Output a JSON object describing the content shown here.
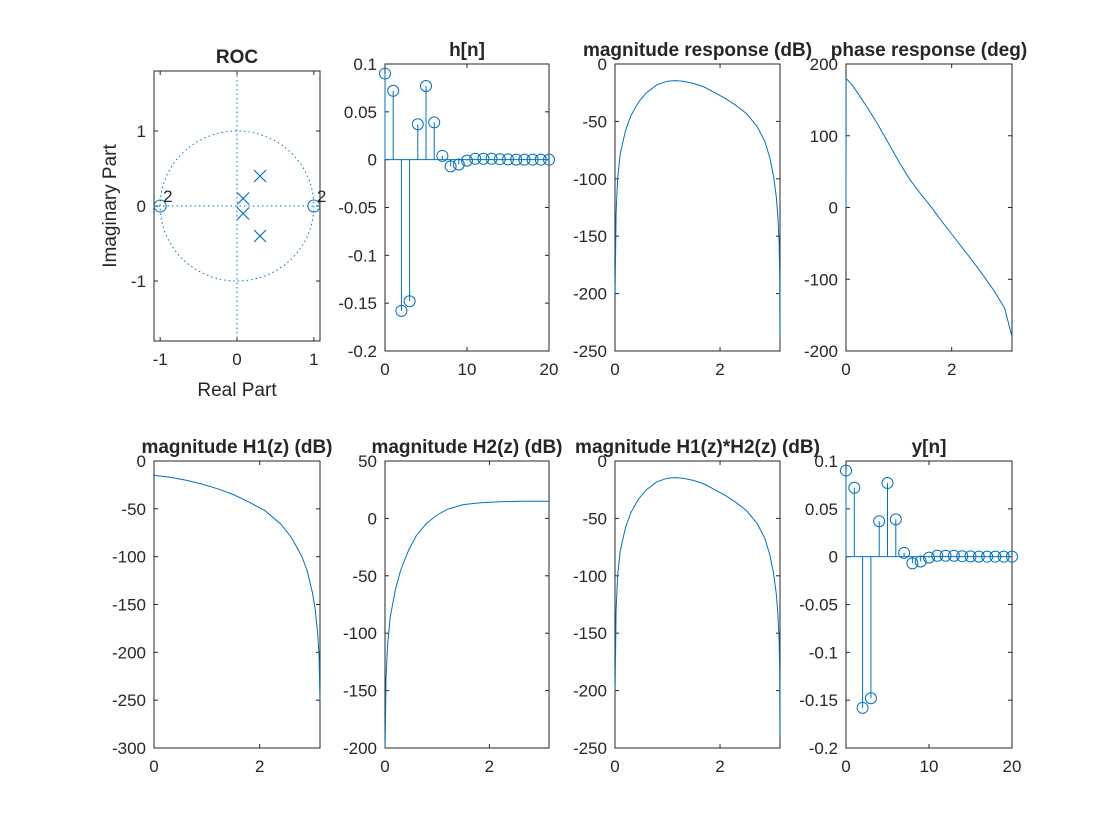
{
  "colors": {
    "series": "#0072BD",
    "axis": "#262626",
    "background": "#ffffff"
  },
  "chart_data": [
    {
      "type": "scatter",
      "title": "ROC",
      "xlabel": "Real Part",
      "ylabel": "Imaginary Part",
      "xlim": [
        -1.08,
        1.08
      ],
      "ylim": [
        -1.8,
        1.8
      ],
      "xticks": [
        {
          "v": -1,
          "label": "-1"
        },
        {
          "v": 0,
          "label": "0"
        },
        {
          "v": 1,
          "label": "1"
        }
      ],
      "yticks": [
        {
          "v": -1,
          "label": "-1"
        },
        {
          "v": 0,
          "label": "0"
        },
        {
          "v": 1,
          "label": "1"
        }
      ],
      "unit_circle": true,
      "zeros": [
        {
          "re": -1,
          "im": 0
        },
        {
          "re": 1,
          "im": 0
        }
      ],
      "zero_multiplicity_labels": [
        {
          "re": -1,
          "im": 0,
          "text": "2"
        },
        {
          "re": 1,
          "im": 0,
          "text": "2"
        }
      ],
      "poles": [
        {
          "re": 0.3,
          "im": 0.4
        },
        {
          "re": 0.3,
          "im": -0.4
        },
        {
          "re": 0.08,
          "im": 0.1
        },
        {
          "re": 0.08,
          "im": -0.1
        }
      ]
    },
    {
      "type": "stem",
      "title": "h[n]",
      "xlim": [
        0,
        20
      ],
      "ylim": [
        -0.2,
        0.1
      ],
      "xticks": [
        {
          "v": 0,
          "label": "0"
        },
        {
          "v": 10,
          "label": "10"
        },
        {
          "v": 20,
          "label": "20"
        }
      ],
      "yticks": [
        {
          "v": -0.2,
          "label": "-0.2"
        },
        {
          "v": -0.15,
          "label": "-0.15"
        },
        {
          "v": -0.1,
          "label": "-0.1"
        },
        {
          "v": -0.05,
          "label": "-0.05"
        },
        {
          "v": 0,
          "label": "0"
        },
        {
          "v": 0.05,
          "label": "0.05"
        },
        {
          "v": 0.1,
          "label": "0.1"
        }
      ],
      "x": [
        0,
        1,
        2,
        3,
        4,
        5,
        6,
        7,
        8,
        9,
        10,
        11,
        12,
        13,
        14,
        15,
        16,
        17,
        18,
        19,
        20
      ],
      "values": [
        0.09,
        0.072,
        -0.158,
        -0.148,
        0.037,
        0.077,
        0.039,
        0.004,
        -0.007,
        -0.005,
        -0.001,
        0.001,
        0.001,
        0.001,
        0.0005,
        0.0003,
        0.0001,
        0,
        0,
        0,
        0
      ]
    },
    {
      "type": "line",
      "title": "magnitude response (dB)",
      "xlim": [
        0,
        3.14159
      ],
      "ylim": [
        -250,
        0
      ],
      "xticks": [
        {
          "v": 0,
          "label": "0"
        },
        {
          "v": 2,
          "label": "2"
        }
      ],
      "yticks": [
        {
          "v": -250,
          "label": "-250"
        },
        {
          "v": -200,
          "label": "-200"
        },
        {
          "v": -150,
          "label": "-150"
        },
        {
          "v": -100,
          "label": "-100"
        },
        {
          "v": -50,
          "label": "-50"
        },
        {
          "v": 0,
          "label": "0"
        }
      ],
      "x": [
        0.001,
        0.02,
        0.05,
        0.1,
        0.2,
        0.3,
        0.45,
        0.6,
        0.8,
        1.0,
        1.15,
        1.3,
        1.5,
        1.7,
        1.9,
        2.1,
        2.3,
        2.5,
        2.7,
        2.85,
        2.95,
        3.02,
        3.07,
        3.1,
        3.125,
        3.135,
        3.1405
      ],
      "values": [
        -200,
        -130,
        -100,
        -78,
        -58,
        -45,
        -33,
        -25,
        -18,
        -15,
        -14.5,
        -15,
        -17,
        -20,
        -25,
        -30,
        -36,
        -43,
        -54,
        -67,
        -82,
        -98,
        -115,
        -132,
        -155,
        -185,
        -240
      ]
    },
    {
      "type": "line",
      "title": "phase response (deg)",
      "xlim": [
        0,
        3.14159
      ],
      "ylim": [
        -200,
        200
      ],
      "xticks": [
        {
          "v": 0,
          "label": "0"
        },
        {
          "v": 2,
          "label": "2"
        }
      ],
      "yticks": [
        {
          "v": -200,
          "label": "-200"
        },
        {
          "v": -100,
          "label": "-100"
        },
        {
          "v": 0,
          "label": "0"
        },
        {
          "v": 100,
          "label": "100"
        },
        {
          "v": 200,
          "label": "200"
        }
      ],
      "x": [
        0,
        0.002,
        0.1,
        0.2,
        0.4,
        0.6,
        0.8,
        1.0,
        1.2,
        1.4,
        1.6,
        1.8,
        2.0,
        2.2,
        2.4,
        2.6,
        2.8,
        3.0,
        3.14159
      ],
      "values": [
        0,
        180,
        172,
        162,
        140,
        116,
        90,
        64,
        40,
        20,
        2,
        -18,
        -37,
        -56,
        -75,
        -95,
        -116,
        -140,
        -180
      ]
    },
    {
      "type": "line",
      "title": "magnitude H1(z) (dB)",
      "xlim": [
        0,
        3.14159
      ],
      "ylim": [
        -300,
        0
      ],
      "xticks": [
        {
          "v": 0,
          "label": "0"
        },
        {
          "v": 2,
          "label": "2"
        }
      ],
      "yticks": [
        {
          "v": -300,
          "label": "-300"
        },
        {
          "v": -250,
          "label": "-250"
        },
        {
          "v": -200,
          "label": "-200"
        },
        {
          "v": -150,
          "label": "-150"
        },
        {
          "v": -100,
          "label": "-100"
        },
        {
          "v": -50,
          "label": "-50"
        },
        {
          "v": 0,
          "label": "0"
        }
      ],
      "x": [
        0,
        0.3,
        0.6,
        0.9,
        1.2,
        1.5,
        1.8,
        2.1,
        2.4,
        2.6,
        2.8,
        2.9,
        3.0,
        3.05,
        3.1,
        3.125,
        3.14
      ],
      "values": [
        -15,
        -17,
        -20,
        -24,
        -29,
        -35,
        -43,
        -52,
        -66,
        -80,
        -100,
        -115,
        -138,
        -155,
        -182,
        -205,
        -250
      ]
    },
    {
      "type": "line",
      "title": "magnitude H2(z) (dB)",
      "xlim": [
        0,
        3.14159
      ],
      "ylim": [
        -200,
        50
      ],
      "xticks": [
        {
          "v": 0,
          "label": "0"
        },
        {
          "v": 2,
          "label": "2"
        }
      ],
      "yticks": [
        {
          "v": -200,
          "label": "-200"
        },
        {
          "v": -150,
          "label": "-150"
        },
        {
          "v": -100,
          "label": "-100"
        },
        {
          "v": -50,
          "label": "-50"
        },
        {
          "v": 0,
          "label": "0"
        },
        {
          "v": 50,
          "label": "50"
        }
      ],
      "x": [
        0.001,
        0.02,
        0.05,
        0.1,
        0.2,
        0.3,
        0.45,
        0.6,
        0.8,
        1.0,
        1.2,
        1.5,
        1.8,
        2.2,
        2.6,
        3.0,
        3.14
      ],
      "values": [
        -200,
        -140,
        -110,
        -86,
        -62,
        -45,
        -28,
        -15,
        -4,
        3,
        8,
        12,
        13.5,
        14.5,
        15,
        15,
        15
      ]
    },
    {
      "type": "line",
      "title": "magnitude H1(z)*H2(z) (dB)",
      "xlim": [
        0,
        3.14159
      ],
      "ylim": [
        -250,
        0
      ],
      "xticks": [
        {
          "v": 0,
          "label": "0"
        },
        {
          "v": 2,
          "label": "2"
        }
      ],
      "yticks": [
        {
          "v": -250,
          "label": "-250"
        },
        {
          "v": -200,
          "label": "-200"
        },
        {
          "v": -150,
          "label": "-150"
        },
        {
          "v": -100,
          "label": "-100"
        },
        {
          "v": -50,
          "label": "-50"
        },
        {
          "v": 0,
          "label": "0"
        }
      ],
      "x": [
        0.001,
        0.02,
        0.05,
        0.1,
        0.2,
        0.3,
        0.45,
        0.6,
        0.8,
        1.0,
        1.15,
        1.3,
        1.5,
        1.7,
        1.9,
        2.1,
        2.3,
        2.5,
        2.7,
        2.85,
        2.95,
        3.02,
        3.07,
        3.1,
        3.125,
        3.135,
        3.1405
      ],
      "values": [
        -200,
        -130,
        -100,
        -78,
        -58,
        -45,
        -33,
        -25,
        -18,
        -15,
        -14.5,
        -15,
        -17,
        -20,
        -25,
        -30,
        -36,
        -43,
        -54,
        -67,
        -82,
        -98,
        -115,
        -132,
        -155,
        -185,
        -240
      ]
    },
    {
      "type": "stem",
      "title": "y[n]",
      "xlim": [
        0,
        20
      ],
      "ylim": [
        -0.2,
        0.1
      ],
      "xticks": [
        {
          "v": 0,
          "label": "0"
        },
        {
          "v": 10,
          "label": "10"
        },
        {
          "v": 20,
          "label": "20"
        }
      ],
      "yticks": [
        {
          "v": -0.2,
          "label": "-0.2"
        },
        {
          "v": -0.15,
          "label": "-0.15"
        },
        {
          "v": -0.1,
          "label": "-0.1"
        },
        {
          "v": -0.05,
          "label": "-0.05"
        },
        {
          "v": 0,
          "label": "0"
        },
        {
          "v": 0.05,
          "label": "0.05"
        },
        {
          "v": 0.1,
          "label": "0.1"
        }
      ],
      "x": [
        0,
        1,
        2,
        3,
        4,
        5,
        6,
        7,
        8,
        9,
        10,
        11,
        12,
        13,
        14,
        15,
        16,
        17,
        18,
        19,
        20
      ],
      "values": [
        0.09,
        0.072,
        -0.158,
        -0.148,
        0.037,
        0.077,
        0.039,
        0.004,
        -0.007,
        -0.005,
        -0.001,
        0.001,
        0.001,
        0.001,
        0.0005,
        0.0003,
        0.0001,
        0,
        0,
        0,
        0
      ]
    }
  ]
}
